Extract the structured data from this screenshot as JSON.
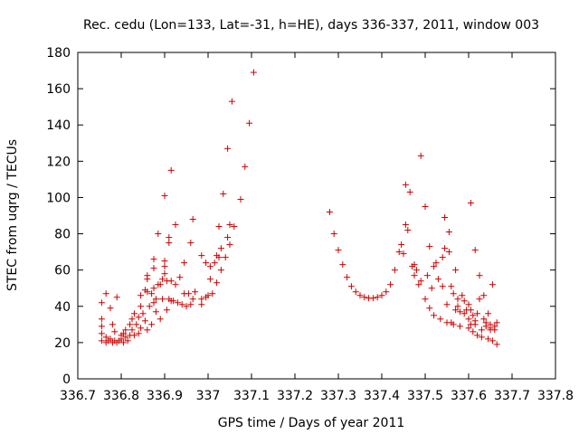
{
  "chart_data": {
    "type": "scatter",
    "title": "Rec. cedu (Lon=133, Lat=-31, h=HE), days 336-337, 2011, window 003",
    "xlabel": "GPS time / Days of year 2011",
    "ylabel": "STEC from uqrg / TECUs",
    "xlim": [
      336.7,
      337.8
    ],
    "ylim": [
      0,
      180
    ],
    "xticks": [
      336.7,
      336.8,
      336.9,
      337,
      337.1,
      337.2,
      337.3,
      337.4,
      337.5,
      337.6,
      337.7,
      337.8
    ],
    "xtick_labels": [
      "336.7",
      "336.8",
      "336.9",
      "337",
      "337.1",
      "337.2",
      "337.3",
      "337.4",
      "337.5",
      "337.6",
      "337.7",
      "337.8"
    ],
    "yticks": [
      0,
      20,
      40,
      60,
      80,
      100,
      120,
      140,
      160,
      180
    ],
    "ytick_labels": [
      "0",
      "20",
      "40",
      "60",
      "80",
      "100",
      "120",
      "140",
      "160",
      "180"
    ],
    "grid": false,
    "marker": "+",
    "color": "#cc0000",
    "points": [
      [
        336.755,
        21
      ],
      [
        336.755,
        25
      ],
      [
        336.755,
        29
      ],
      [
        336.755,
        33
      ],
      [
        336.755,
        42
      ],
      [
        336.765,
        20
      ],
      [
        336.765,
        23
      ],
      [
        336.765,
        47
      ],
      [
        336.77,
        21
      ],
      [
        336.775,
        22
      ],
      [
        336.775,
        39
      ],
      [
        336.78,
        20
      ],
      [
        336.78,
        30
      ],
      [
        336.785,
        21
      ],
      [
        336.785,
        26
      ],
      [
        336.79,
        20
      ],
      [
        336.79,
        45
      ],
      [
        336.795,
        21
      ],
      [
        336.8,
        22
      ],
      [
        336.8,
        24
      ],
      [
        336.805,
        20
      ],
      [
        336.805,
        25
      ],
      [
        336.81,
        23
      ],
      [
        336.81,
        27
      ],
      [
        336.815,
        21
      ],
      [
        336.82,
        24
      ],
      [
        336.82,
        30
      ],
      [
        336.825,
        27
      ],
      [
        336.825,
        33
      ],
      [
        336.83,
        24
      ],
      [
        336.83,
        36
      ],
      [
        336.835,
        30
      ],
      [
        336.84,
        25
      ],
      [
        336.84,
        34
      ],
      [
        336.845,
        28
      ],
      [
        336.845,
        40
      ],
      [
        336.845,
        46
      ],
      [
        336.85,
        36
      ],
      [
        336.855,
        32
      ],
      [
        336.855,
        49
      ],
      [
        336.86,
        27
      ],
      [
        336.86,
        48
      ],
      [
        336.86,
        55
      ],
      [
        336.86,
        57
      ],
      [
        336.865,
        40
      ],
      [
        336.87,
        30
      ],
      [
        336.87,
        47
      ],
      [
        336.875,
        42
      ],
      [
        336.875,
        50
      ],
      [
        336.875,
        61
      ],
      [
        336.875,
        66
      ],
      [
        336.88,
        37
      ],
      [
        336.88,
        44
      ],
      [
        336.885,
        52
      ],
      [
        336.885,
        80
      ],
      [
        336.89,
        33
      ],
      [
        336.89,
        52
      ],
      [
        336.895,
        44
      ],
      [
        336.895,
        55
      ],
      [
        336.9,
        58
      ],
      [
        336.9,
        62
      ],
      [
        336.9,
        65
      ],
      [
        336.9,
        101
      ],
      [
        336.905,
        38
      ],
      [
        336.905,
        54
      ],
      [
        336.91,
        44
      ],
      [
        336.91,
        75
      ],
      [
        336.91,
        78
      ],
      [
        336.915,
        43
      ],
      [
        336.915,
        54
      ],
      [
        336.915,
        115
      ],
      [
        336.92,
        43
      ],
      [
        336.925,
        52
      ],
      [
        336.925,
        85
      ],
      [
        336.93,
        42
      ],
      [
        336.935,
        56
      ],
      [
        336.94,
        41
      ],
      [
        336.945,
        47
      ],
      [
        336.945,
        64
      ],
      [
        336.95,
        40
      ],
      [
        336.955,
        47
      ],
      [
        336.96,
        75
      ],
      [
        336.96,
        41
      ],
      [
        336.965,
        44
      ],
      [
        336.965,
        88
      ],
      [
        336.97,
        48
      ],
      [
        336.985,
        41
      ],
      [
        336.985,
        44
      ],
      [
        336.985,
        68
      ],
      [
        336.995,
        45
      ],
      [
        336.995,
        64
      ],
      [
        337.0,
        46
      ],
      [
        337.005,
        55
      ],
      [
        337.005,
        62
      ],
      [
        337.01,
        47
      ],
      [
        337.015,
        64
      ],
      [
        337.02,
        53
      ],
      [
        337.02,
        68
      ],
      [
        337.025,
        67
      ],
      [
        337.025,
        84
      ],
      [
        337.03,
        60
      ],
      [
        337.03,
        72
      ],
      [
        337.035,
        102
      ],
      [
        337.04,
        67
      ],
      [
        337.045,
        127
      ],
      [
        337.045,
        78
      ],
      [
        337.05,
        74
      ],
      [
        337.05,
        85
      ],
      [
        337.055,
        153
      ],
      [
        337.06,
        84
      ],
      [
        337.075,
        99
      ],
      [
        337.085,
        117
      ],
      [
        337.095,
        141
      ],
      [
        337.105,
        169
      ],
      [
        337.28,
        92
      ],
      [
        337.29,
        80
      ],
      [
        337.3,
        71
      ],
      [
        337.31,
        63
      ],
      [
        337.32,
        56
      ],
      [
        337.33,
        51
      ],
      [
        337.34,
        48
      ],
      [
        337.35,
        46
      ],
      [
        337.36,
        45
      ],
      [
        337.37,
        44.5
      ],
      [
        337.38,
        44.5
      ],
      [
        337.39,
        45
      ],
      [
        337.4,
        46
      ],
      [
        337.41,
        48
      ],
      [
        337.42,
        52
      ],
      [
        337.43,
        60
      ],
      [
        337.44,
        70
      ],
      [
        337.445,
        74
      ],
      [
        337.45,
        69
      ],
      [
        337.455,
        85
      ],
      [
        337.455,
        107
      ],
      [
        337.46,
        82
      ],
      [
        337.465,
        103
      ],
      [
        337.47,
        62
      ],
      [
        337.475,
        63
      ],
      [
        337.475,
        57
      ],
      [
        337.48,
        60
      ],
      [
        337.485,
        52
      ],
      [
        337.49,
        123
      ],
      [
        337.49,
        54
      ],
      [
        337.5,
        95
      ],
      [
        337.5,
        44
      ],
      [
        337.505,
        57
      ],
      [
        337.51,
        73
      ],
      [
        337.51,
        39
      ],
      [
        337.515,
        50
      ],
      [
        337.52,
        35
      ],
      [
        337.52,
        62
      ],
      [
        337.525,
        64
      ],
      [
        337.53,
        55
      ],
      [
        337.535,
        33
      ],
      [
        337.54,
        67
      ],
      [
        337.54,
        51
      ],
      [
        337.545,
        89
      ],
      [
        337.545,
        72
      ],
      [
        337.55,
        41
      ],
      [
        337.55,
        31
      ],
      [
        337.555,
        81
      ],
      [
        337.555,
        70
      ],
      [
        337.56,
        51
      ],
      [
        337.56,
        31
      ],
      [
        337.565,
        47
      ],
      [
        337.565,
        30
      ],
      [
        337.57,
        60
      ],
      [
        337.575,
        44
      ],
      [
        337.575,
        40
      ],
      [
        337.58,
        29
      ],
      [
        337.585,
        46
      ],
      [
        337.59,
        36
      ],
      [
        337.59,
        43
      ],
      [
        337.595,
        38
      ],
      [
        337.6,
        28
      ],
      [
        337.6,
        41
      ],
      [
        337.605,
        97
      ],
      [
        337.61,
        35
      ],
      [
        337.61,
        26
      ],
      [
        337.615,
        71
      ],
      [
        337.615,
        30
      ],
      [
        337.62,
        24
      ],
      [
        337.625,
        44
      ],
      [
        337.625,
        57
      ],
      [
        337.63,
        23
      ],
      [
        337.635,
        33
      ],
      [
        337.635,
        46
      ],
      [
        337.64,
        29
      ],
      [
        337.645,
        22
      ],
      [
        337.645,
        36
      ],
      [
        337.65,
        28
      ],
      [
        337.65,
        30
      ],
      [
        337.655,
        52
      ],
      [
        337.655,
        21
      ],
      [
        337.66,
        27
      ],
      [
        337.665,
        19
      ],
      [
        337.665,
        31
      ],
      [
        337.605,
        38
      ],
      [
        337.605,
        30
      ],
      [
        337.58,
        37
      ],
      [
        337.57,
        38
      ],
      [
        337.6,
        33
      ],
      [
        337.615,
        32
      ],
      [
        337.62,
        36
      ],
      [
        337.63,
        27
      ],
      [
        337.64,
        31
      ],
      [
        337.65,
        27
      ],
      [
        337.66,
        29
      ]
    ]
  }
}
